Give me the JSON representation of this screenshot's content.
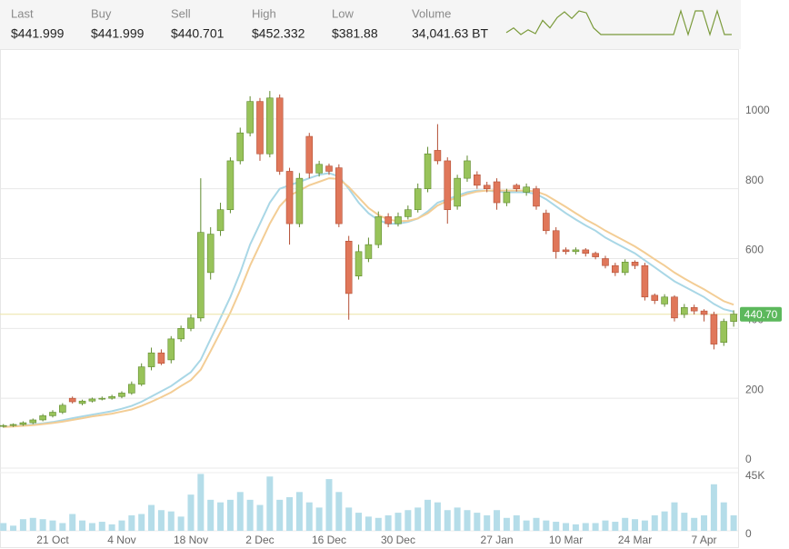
{
  "header": {
    "items": [
      {
        "label": "Last",
        "value": "$441.999"
      },
      {
        "label": "Buy",
        "value": "$441.999"
      },
      {
        "label": "Sell",
        "value": "$440.701"
      },
      {
        "label": "High",
        "value": "$452.332"
      },
      {
        "label": "Low",
        "value": "$381.88"
      },
      {
        "label": "Volume",
        "value": "34,041.63 BT"
      }
    ],
    "sparkline": {
      "color": "#7a9a3a",
      "values": [
        3,
        8,
        1,
        6,
        2,
        16,
        8,
        19,
        25,
        18,
        26,
        24,
        8,
        1,
        1,
        1,
        1,
        1,
        1,
        1,
        1,
        1,
        1,
        1,
        26,
        1,
        26,
        26,
        1,
        26,
        1,
        1
      ]
    }
  },
  "chart_data": {
    "type": "candlestick",
    "categories": [
      null,
      null,
      null,
      null,
      null,
      "21 Oct",
      null,
      null,
      null,
      null,
      null,
      null,
      "4 Nov",
      null,
      null,
      null,
      null,
      null,
      null,
      "18 Nov",
      null,
      null,
      null,
      null,
      null,
      null,
      "2 Dec",
      null,
      null,
      null,
      null,
      null,
      null,
      "16 Dec",
      null,
      null,
      null,
      null,
      null,
      null,
      "30 Dec",
      null,
      null,
      null,
      null,
      null,
      null,
      null,
      null,
      null,
      "27 Jan",
      null,
      null,
      null,
      null,
      null,
      null,
      "10 Mar",
      null,
      null,
      null,
      null,
      null,
      null,
      "24 Mar",
      null,
      null,
      null,
      null,
      null,
      null,
      "7 Apr",
      null,
      null,
      null
    ],
    "open": [
      120,
      122,
      125,
      130,
      138,
      150,
      160,
      200,
      185,
      192,
      198,
      200,
      205,
      215,
      240,
      290,
      330,
      310,
      370,
      400,
      430,
      560,
      680,
      740,
      880,
      960,
      1050,
      900,
      1060,
      850,
      700,
      950,
      845,
      865,
      860,
      650,
      550,
      600,
      640,
      720,
      700,
      720,
      740,
      800,
      910,
      880,
      750,
      830,
      840,
      810,
      820,
      760,
      810,
      790,
      800,
      730,
      680,
      625,
      620,
      625,
      615,
      600,
      580,
      560,
      590,
      580,
      495,
      470,
      490,
      440,
      460,
      450,
      440,
      360,
      420
    ],
    "high": [
      126,
      128,
      134,
      142,
      155,
      166,
      186,
      205,
      196,
      202,
      205,
      210,
      220,
      248,
      300,
      345,
      340,
      378,
      408,
      440,
      830,
      690,
      760,
      890,
      975,
      1065,
      1060,
      1080,
      1070,
      860,
      845,
      960,
      880,
      872,
      870,
      665,
      640,
      660,
      735,
      730,
      732,
      752,
      815,
      920,
      985,
      890,
      840,
      895,
      850,
      820,
      830,
      800,
      815,
      815,
      808,
      740,
      690,
      632,
      632,
      630,
      620,
      608,
      588,
      598,
      595,
      588,
      500,
      498,
      495,
      470,
      468,
      455,
      448,
      428,
      452
    ],
    "low": [
      116,
      118,
      121,
      126,
      134,
      145,
      155,
      185,
      180,
      188,
      194,
      196,
      200,
      210,
      235,
      280,
      295,
      300,
      362,
      392,
      420,
      540,
      665,
      730,
      870,
      950,
      880,
      890,
      840,
      640,
      690,
      830,
      835,
      840,
      690,
      425,
      540,
      590,
      630,
      690,
      692,
      712,
      732,
      790,
      870,
      700,
      740,
      820,
      800,
      790,
      740,
      750,
      792,
      780,
      740,
      670,
      600,
      612,
      612,
      606,
      598,
      572,
      550,
      552,
      570,
      480,
      470,
      462,
      420,
      430,
      440,
      420,
      340,
      350,
      405
    ],
    "close": [
      122,
      125,
      130,
      138,
      150,
      160,
      180,
      190,
      192,
      198,
      200,
      205,
      215,
      240,
      290,
      330,
      300,
      370,
      400,
      430,
      675,
      670,
      740,
      880,
      960,
      1050,
      900,
      1060,
      850,
      700,
      830,
      845,
      870,
      850,
      700,
      500,
      620,
      640,
      720,
      700,
      720,
      740,
      800,
      900,
      880,
      740,
      830,
      880,
      810,
      800,
      760,
      790,
      800,
      805,
      750,
      680,
      620,
      620,
      625,
      615,
      605,
      580,
      560,
      590,
      580,
      490,
      480,
      490,
      430,
      460,
      450,
      440,
      355,
      420,
      441
    ],
    "up_color": "#98c35a",
    "down_color": "#e0775a",
    "series": [
      {
        "color": "#a9d7e6",
        "values": [
          118,
          120,
          122,
          125,
          128,
          132,
          137,
          143,
          148,
          153,
          158,
          163,
          170,
          178,
          190,
          205,
          220,
          235,
          255,
          275,
          310,
          370,
          430,
          490,
          560,
          640,
          700,
          760,
          800,
          810,
          820,
          830,
          840,
          845,
          835,
          800,
          760,
          730,
          710,
          700,
          700,
          705,
          715,
          735,
          760,
          770,
          780,
          790,
          795,
          795,
          792,
          790,
          790,
          790,
          785,
          770,
          750,
          730,
          712,
          695,
          680,
          660,
          645,
          630,
          615,
          595,
          575,
          555,
          535,
          520,
          505,
          490,
          470,
          455,
          448
        ]
      },
      {
        "color": "#f3cd95",
        "values": [
          118,
          119,
          121,
          123,
          126,
          129,
          133,
          138,
          143,
          148,
          152,
          156,
          162,
          168,
          178,
          190,
          203,
          217,
          235,
          252,
          282,
          335,
          390,
          445,
          510,
          580,
          640,
          700,
          750,
          780,
          795,
          810,
          820,
          830,
          828,
          805,
          775,
          745,
          725,
          712,
          707,
          708,
          715,
          730,
          752,
          765,
          775,
          785,
          792,
          795,
          795,
          795,
          795,
          795,
          792,
          782,
          765,
          748,
          730,
          712,
          697,
          680,
          665,
          650,
          635,
          617,
          598,
          580,
          560,
          543,
          527,
          512,
          495,
          478,
          468
        ]
      }
    ],
    "ylim": [
      0,
      1200
    ],
    "yticks": [
      0,
      200,
      400,
      600,
      800,
      1000
    ],
    "grid": true,
    "current_price": {
      "value": 440.7,
      "label": "440.70",
      "color": "#5cb85c"
    },
    "volume": {
      "color": "#b5dde9",
      "ylim": [
        0,
        48500
      ],
      "yticks": [
        0,
        {
          "value": 45000,
          "label": "45K"
        }
      ],
      "values": [
        6000,
        4000,
        9000,
        10000,
        9000,
        8000,
        6000,
        13000,
        8000,
        6000,
        7000,
        5000,
        8000,
        12000,
        13000,
        20000,
        16000,
        15000,
        11000,
        28000,
        44000,
        24000,
        22000,
        24000,
        30000,
        24000,
        20000,
        42000,
        24000,
        26000,
        30000,
        22000,
        18000,
        40000,
        30000,
        18000,
        14000,
        11000,
        10000,
        12000,
        14000,
        16000,
        18000,
        24000,
        22000,
        16000,
        18000,
        16000,
        14000,
        12000,
        16000,
        10000,
        12000,
        8000,
        10000,
        8000,
        7000,
        6000,
        5000,
        6000,
        6000,
        8000,
        7000,
        10000,
        9000,
        8000,
        12000,
        15000,
        22000,
        14000,
        10000,
        12000,
        36000,
        22000,
        12000
      ]
    }
  }
}
